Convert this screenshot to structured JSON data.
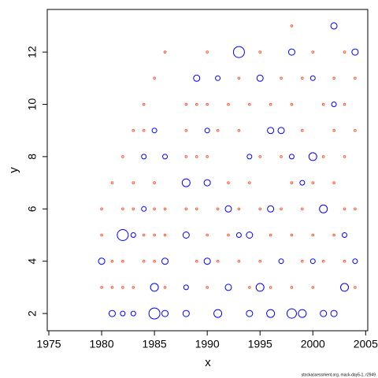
{
  "chart_data": {
    "type": "bubble",
    "xlabel": "x",
    "ylabel": "y",
    "note": "stockassessment.org, mack-day5-1, r2949",
    "xlim": [
      1974.85,
      2005.2
    ],
    "ylim": [
      1.34,
      13.63
    ],
    "xticks": [
      1975,
      1980,
      1985,
      1990,
      1995,
      2000,
      2005
    ],
    "yticks": [
      2,
      4,
      6,
      8,
      10,
      12
    ],
    "series": [
      {
        "color": "#0000ff",
        "x": [
          1980,
          1981,
          1982,
          1982,
          1983,
          1983,
          1984,
          1984,
          1985,
          1985,
          1985,
          1986,
          1986,
          1986,
          1988,
          1988,
          1988,
          1989,
          1990,
          1990,
          1991,
          1991,
          1992,
          1992,
          1993,
          1993,
          1994,
          1994,
          1995,
          1995,
          1996,
          1996,
          1997,
          1997,
          1998,
          1998,
          1998,
          1999,
          1999,
          2000,
          2000,
          2001,
          2001,
          2002,
          2002,
          2002,
          2003,
          2003,
          2004,
          2004,
          1996,
          1994,
          1990,
          1988,
          2000
        ],
        "values": [
          4,
          2,
          2,
          5,
          2,
          5,
          6,
          8,
          2,
          3,
          9,
          2,
          4,
          8,
          2,
          5,
          7,
          11,
          4,
          7,
          2,
          11,
          3,
          6,
          12,
          5,
          2,
          8,
          11,
          3,
          2,
          6,
          9,
          4,
          2,
          8,
          12,
          2,
          7,
          8,
          4,
          6,
          2,
          13,
          2,
          10,
          3,
          5,
          12,
          4,
          9,
          5,
          9,
          3,
          11
        ],
        "sizes": [
          4,
          4,
          3,
          7,
          3,
          3,
          3,
          3,
          7,
          5,
          3,
          4,
          4,
          3,
          4,
          4,
          5,
          4,
          4,
          4,
          5,
          3,
          4,
          4,
          7,
          3,
          4,
          3,
          4,
          5,
          5,
          4,
          4,
          3,
          6,
          3,
          4,
          5,
          3,
          5,
          3,
          5,
          4,
          4,
          4,
          3,
          5,
          3,
          4,
          3,
          4,
          4,
          3,
          3,
          3
        ]
      },
      {
        "color": "#ff5533",
        "x": [
          1980,
          1980,
          1980,
          1981,
          1981,
          1981,
          1982,
          1982,
          1982,
          1982,
          1983,
          1983,
          1983,
          1983,
          1984,
          1984,
          1984,
          1984,
          1985,
          1985,
          1985,
          1985,
          1985,
          1986,
          1986,
          1986,
          1986,
          1988,
          1988,
          1988,
          1988,
          1989,
          1989,
          1989,
          1989,
          1990,
          1990,
          1990,
          1990,
          1990,
          1991,
          1991,
          1991,
          1992,
          1992,
          1992,
          1993,
          1993,
          1993,
          1993,
          1994,
          1994,
          1994,
          1995,
          1995,
          1995,
          1995,
          1996,
          1996,
          1996,
          1997,
          1997,
          1997,
          1998,
          1998,
          1998,
          1998,
          1998,
          1999,
          1999,
          1999,
          1999,
          2000,
          2000,
          2000,
          2000,
          2001,
          2001,
          2001,
          2002,
          2002,
          2002,
          2002,
          2003,
          2003,
          2003,
          2003,
          2003,
          2004,
          2004,
          2004,
          2004
        ],
        "values": [
          3,
          5,
          6,
          3,
          4,
          7,
          3,
          4,
          6,
          8,
          3,
          6,
          7,
          9,
          4,
          5,
          9,
          10,
          4,
          5,
          6,
          7,
          11,
          3,
          5,
          6,
          12,
          6,
          8,
          9,
          10,
          4,
          6,
          8,
          10,
          3,
          5,
          8,
          10,
          12,
          4,
          6,
          9,
          5,
          7,
          10,
          4,
          6,
          9,
          11,
          3,
          7,
          10,
          4,
          6,
          8,
          12,
          3,
          5,
          10,
          6,
          8,
          11,
          3,
          5,
          7,
          10,
          13,
          4,
          6,
          9,
          11,
          3,
          5,
          7,
          12,
          4,
          8,
          10,
          5,
          7,
          9,
          11,
          4,
          6,
          8,
          10,
          12,
          3,
          6,
          9,
          11
        ]
      }
    ]
  }
}
